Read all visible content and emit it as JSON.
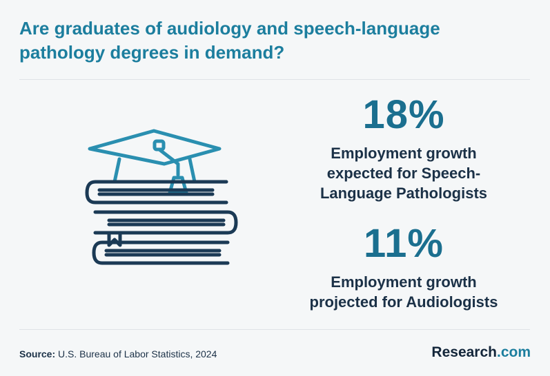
{
  "title": "Are graduates of audiology and speech-language pathology degrees in demand?",
  "stats": [
    {
      "value": "18%",
      "description": "Employment growth expected for Speech-Language Pathologists"
    },
    {
      "value": "11%",
      "description": "Employment growth projected for Audiologists"
    }
  ],
  "source": {
    "label": "Source:",
    "text": "U.S. Bureau of Labor Statistics, 2024"
  },
  "brand": {
    "name": "Research",
    "suffix": ".com"
  },
  "illustration": {
    "icon": "graduation-cap-on-books-icon"
  },
  "colors": {
    "accent": "#1c7e9e",
    "stat": "#1b6f8f",
    "text": "#1b3147",
    "background": "#f5f7f8"
  }
}
